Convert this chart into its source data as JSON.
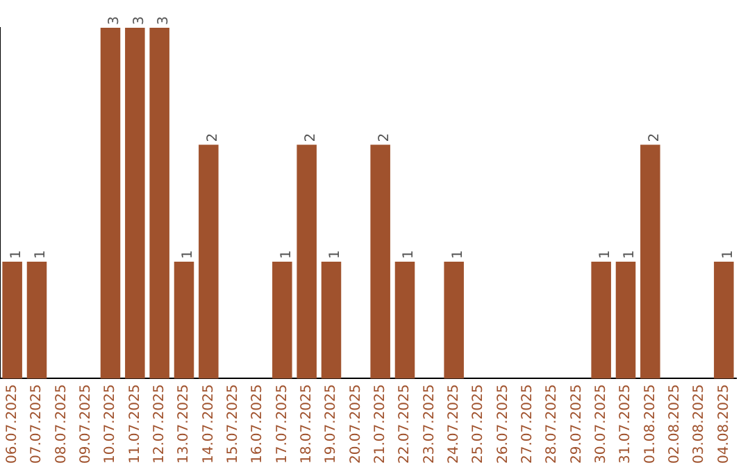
{
  "chart_data": {
    "type": "bar",
    "categories": [
      "06.07.2025",
      "07.07.2025",
      "08.07.2025",
      "09.07.2025",
      "10.07.2025",
      "11.07.2025",
      "12.07.2025",
      "13.07.2025",
      "14.07.2025",
      "15.07.2025",
      "16.07.2025",
      "17.07.2025",
      "18.07.2025",
      "19.07.2025",
      "20.07.2025",
      "21.07.2025",
      "22.07.2025",
      "23.07.2025",
      "24.07.2025",
      "25.07.2025",
      "26.07.2025",
      "27.07.2025",
      "28.07.2025",
      "29.07.2025",
      "30.07.2025",
      "31.07.2025",
      "01.08.2025",
      "02.08.2025",
      "03.08.2025",
      "04.08.2025"
    ],
    "values": [
      1,
      1,
      0,
      0,
      3,
      3,
      3,
      1,
      2,
      0,
      0,
      1,
      2,
      1,
      0,
      2,
      1,
      0,
      1,
      0,
      0,
      0,
      0,
      0,
      1,
      1,
      2,
      0,
      0,
      1
    ],
    "value_labels": [
      "1",
      "1",
      null,
      null,
      "3",
      "3",
      "3",
      "1",
      "2",
      null,
      null,
      "1",
      "2",
      "1",
      null,
      "2",
      "1",
      null,
      "1",
      null,
      null,
      null,
      null,
      null,
      "1",
      "1",
      "2",
      null,
      null,
      "1"
    ],
    "color": "#a0522d",
    "ylim": [
      0,
      3
    ],
    "tick_labels": "x",
    "grid": false,
    "legend": false
  }
}
